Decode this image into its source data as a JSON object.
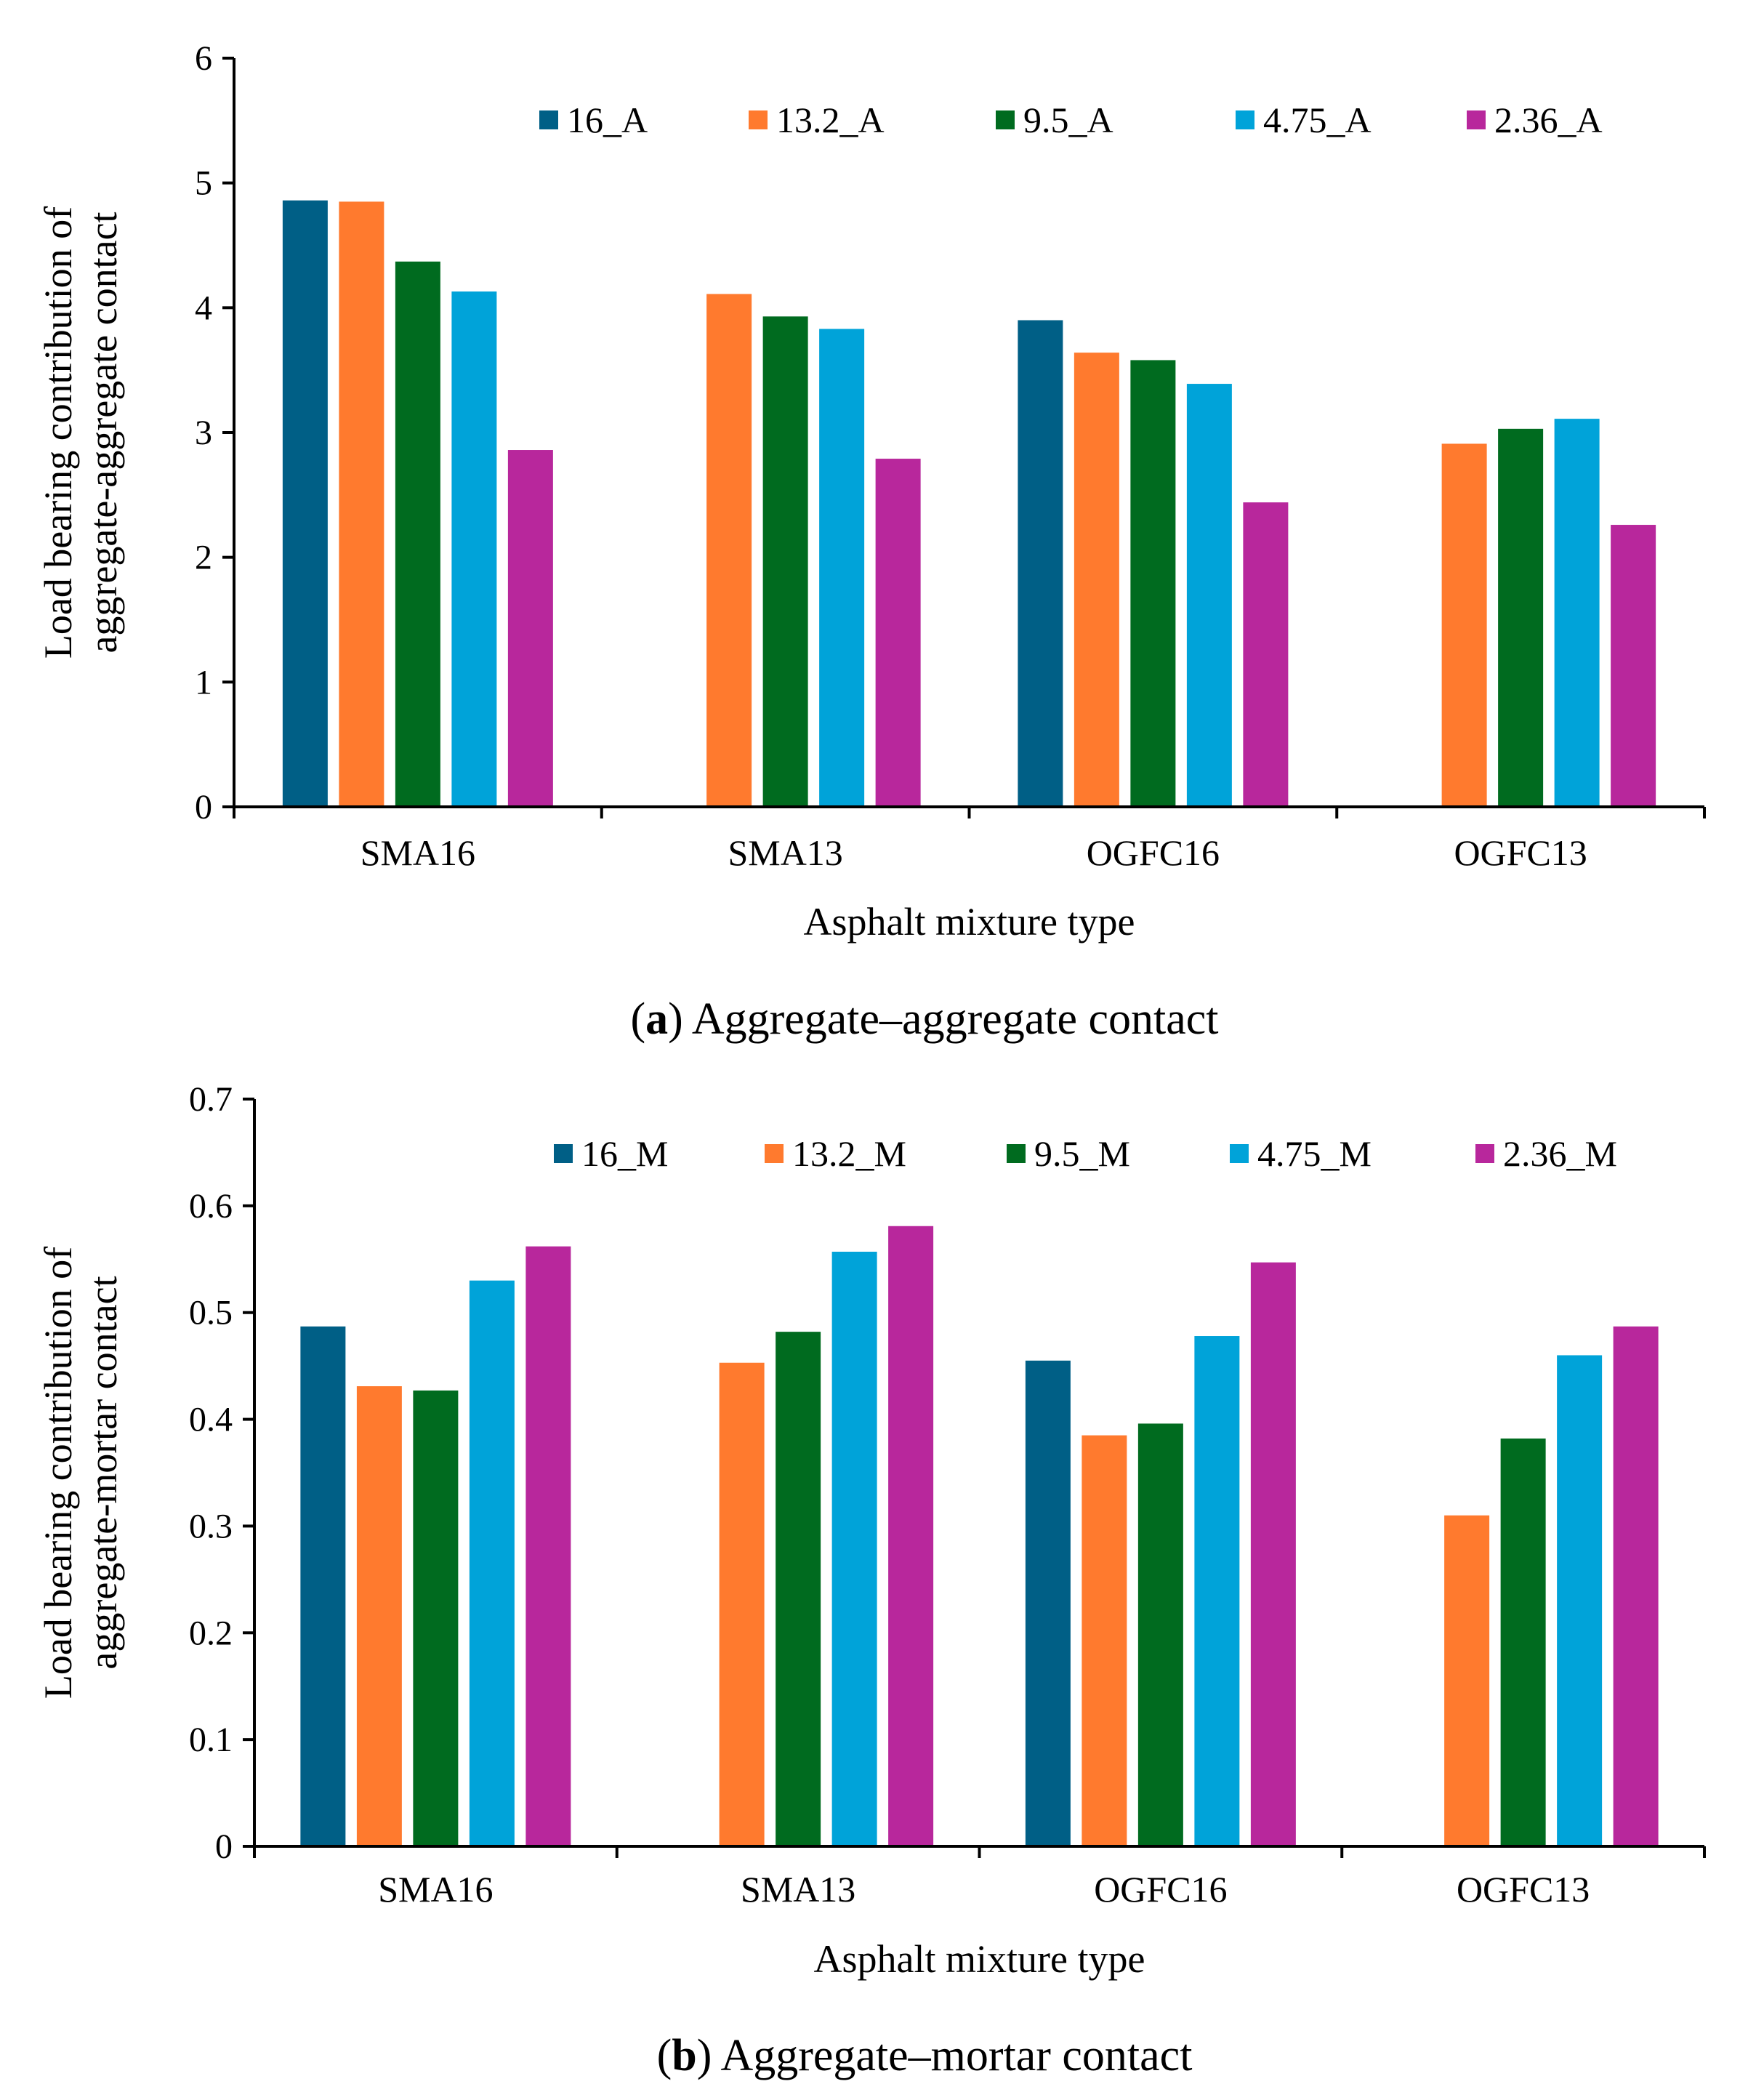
{
  "chart_data": [
    {
      "type": "bar",
      "panel": "a",
      "caption_letter": "a",
      "caption_text": "Aggregate–aggregate contact",
      "categories": [
        "SMA16",
        "SMA13",
        "OGFC16",
        "OGFC13"
      ],
      "series": [
        {
          "name": "16_A",
          "color": "#005F86",
          "values": [
            4.86,
            null,
            3.9,
            null
          ]
        },
        {
          "name": "13.2_A",
          "color": "#FF7A2E",
          "values": [
            4.85,
            4.11,
            3.64,
            2.91
          ]
        },
        {
          "name": "9.5_A",
          "color": "#006B1F",
          "values": [
            4.37,
            3.93,
            3.58,
            3.03
          ]
        },
        {
          "name": "4.75_A",
          "color": "#00A3D9",
          "values": [
            4.13,
            3.83,
            3.39,
            3.11
          ]
        },
        {
          "name": "2.36_A",
          "color": "#B8279C",
          "values": [
            2.86,
            2.79,
            2.44,
            2.26
          ]
        }
      ],
      "xlabel": "Asphalt mixture type",
      "ylabel_lines": [
        "Load bearing contribution of",
        "aggregate-aggregate contact"
      ],
      "ylim": [
        0,
        6
      ],
      "yticks": [
        "0",
        "1",
        "2",
        "3",
        "4",
        "5",
        "6"
      ],
      "legend_position": "top",
      "grid": false
    },
    {
      "type": "bar",
      "panel": "b",
      "caption_letter": "b",
      "caption_text": "Aggregate–mortar contact",
      "categories": [
        "SMA16",
        "SMA13",
        "OGFC16",
        "OGFC13"
      ],
      "series": [
        {
          "name": "16_M",
          "color": "#005F86",
          "values": [
            0.487,
            null,
            0.455,
            null
          ]
        },
        {
          "name": "13.2_M",
          "color": "#FF7A2E",
          "values": [
            0.431,
            0.453,
            0.385,
            0.31
          ]
        },
        {
          "name": "9.5_M",
          "color": "#006B1F",
          "values": [
            0.427,
            0.482,
            0.396,
            0.382
          ]
        },
        {
          "name": "4.75_M",
          "color": "#00A3D9",
          "values": [
            0.53,
            0.557,
            0.478,
            0.46
          ]
        },
        {
          "name": "2.36_M",
          "color": "#B8279C",
          "values": [
            0.562,
            0.581,
            0.547,
            0.487
          ]
        }
      ],
      "xlabel": "Asphalt mixture type",
      "ylabel_lines": [
        "Load bearing contribution of",
        "aggregate-mortar contact"
      ],
      "ylim": [
        0,
        0.7
      ],
      "yticks": [
        "0",
        "0.1",
        "0.2",
        "0.3",
        "0.4",
        "0.5",
        "0.6",
        "0.7"
      ],
      "legend_position": "top",
      "grid": false
    }
  ]
}
